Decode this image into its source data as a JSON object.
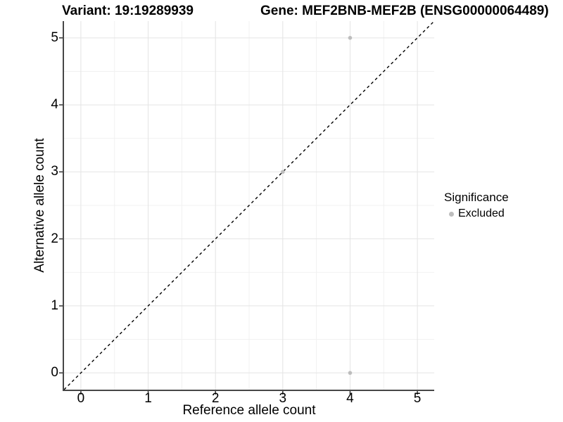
{
  "chart_data": {
    "type": "scatter",
    "title_variant": "Variant: 19:19289939",
    "title_gene": "Gene: MEF2BNB-MEF2B (ENSG00000064489)",
    "xlabel": "Reference allele count",
    "ylabel": "Alternative allele count",
    "xlim": [
      -0.25,
      5.25
    ],
    "ylim": [
      -0.25,
      5.25
    ],
    "xticks": [
      0,
      1,
      2,
      3,
      4,
      5
    ],
    "yticks": [
      0,
      1,
      2,
      3,
      4,
      5
    ],
    "minor_ticks_x": [
      0.5,
      1.5,
      2.5,
      3.5,
      4.5
    ],
    "minor_ticks_y": [
      0.5,
      1.5,
      2.5,
      3.5,
      4.5
    ],
    "grid": true,
    "series": [
      {
        "name": "Excluded",
        "color": "#bdbdbd",
        "points": [
          {
            "x": 3,
            "y": 3
          },
          {
            "x": 4,
            "y": 0
          },
          {
            "x": 4,
            "y": 5
          }
        ]
      }
    ],
    "identity_line": {
      "style": "dashed",
      "color": "#000000"
    },
    "legend_position": "right",
    "legend": {
      "title": "Significance",
      "entries": [
        {
          "label": "Excluded",
          "color": "#bdbdbd"
        }
      ]
    },
    "colors": {
      "background": "#ffffff",
      "grid_major": "#e4e4e4",
      "grid_minor": "#f1f1f1",
      "axis_line": "#474747",
      "tick_mark": "#333333",
      "point": "#bdbdbd"
    }
  }
}
